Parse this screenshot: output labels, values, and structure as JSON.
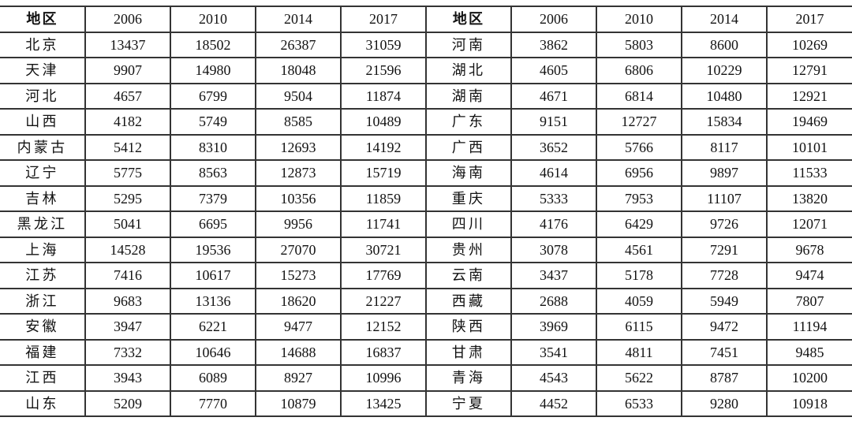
{
  "page": {
    "background": "#ffffff",
    "line_color": "#343434",
    "text_color": "#121212"
  },
  "chart_data": {
    "type": "table",
    "layout": "two side-by-side five-column panels sharing one ruled grid; horizontal rules span full width, vertical rules interior only; text centered",
    "panels": [
      {
        "columns": [
          "地区",
          "2006",
          "2010",
          "2014",
          "2017"
        ],
        "rows": [
          [
            "北京",
            13437,
            18502,
            26387,
            31059
          ],
          [
            "天津",
            9907,
            14980,
            18048,
            21596
          ],
          [
            "河北",
            4657,
            6799,
            9504,
            11874
          ],
          [
            "山西",
            4182,
            5749,
            8585,
            10489
          ],
          [
            "内蒙古",
            5412,
            8310,
            12693,
            14192
          ],
          [
            "辽宁",
            5775,
            8563,
            12873,
            15719
          ],
          [
            "吉林",
            5295,
            7379,
            10356,
            11859
          ],
          [
            "黑龙江",
            5041,
            6695,
            9956,
            11741
          ],
          [
            "上海",
            14528,
            19536,
            27070,
            30721
          ],
          [
            "江苏",
            7416,
            10617,
            15273,
            17769
          ],
          [
            "浙江",
            9683,
            13136,
            18620,
            21227
          ],
          [
            "安徽",
            3947,
            6221,
            9477,
            12152
          ],
          [
            "福建",
            7332,
            10646,
            14688,
            16837
          ],
          [
            "江西",
            3943,
            6089,
            8927,
            10996
          ],
          [
            "山东",
            5209,
            7770,
            10879,
            13425
          ]
        ]
      },
      {
        "columns": [
          "地区",
          "2006",
          "2010",
          "2014",
          "2017"
        ],
        "rows": [
          [
            "河南",
            3862,
            5803,
            8600,
            10269
          ],
          [
            "湖北",
            4605,
            6806,
            10229,
            12791
          ],
          [
            "湖南",
            4671,
            6814,
            10480,
            12921
          ],
          [
            "广东",
            9151,
            12727,
            15834,
            19469
          ],
          [
            "广西",
            3652,
            5766,
            8117,
            10101
          ],
          [
            "海南",
            4614,
            6956,
            9897,
            11533
          ],
          [
            "重庆",
            5333,
            7953,
            11107,
            13820
          ],
          [
            "四川",
            4176,
            6429,
            9726,
            12071
          ],
          [
            "贵州",
            3078,
            4561,
            7291,
            9678
          ],
          [
            "云南",
            3437,
            5178,
            7728,
            9474
          ],
          [
            "西藏",
            2688,
            4059,
            5949,
            7807
          ],
          [
            "陕西",
            3969,
            6115,
            9472,
            11194
          ],
          [
            "甘肃",
            3541,
            4811,
            7451,
            9485
          ],
          [
            "青海",
            4543,
            5622,
            8787,
            10200
          ],
          [
            "宁夏",
            4452,
            6533,
            9280,
            10918
          ]
        ]
      }
    ]
  }
}
